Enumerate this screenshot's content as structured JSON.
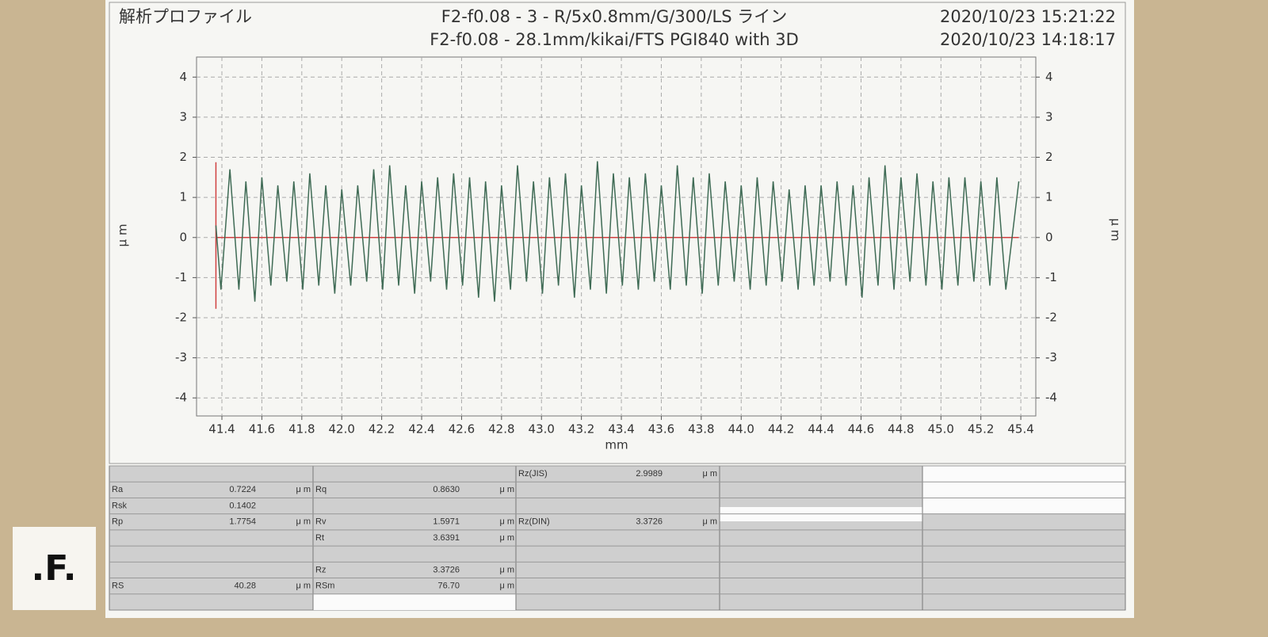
{
  "header": {
    "name": "解析プロファイル",
    "title_lines": [
      "F2-f0.08 - 3 - R/5x0.8mm/G/300/LS ライン",
      "F2-f0.08 - 28.1mm/kikai/FTS PGI840 with 3D"
    ],
    "dates": [
      "2020/10/23 15:21:22",
      "2020/10/23 14:18:17"
    ]
  },
  "chart_data": {
    "type": "line",
    "x_label": "mm",
    "y_label": "μ m",
    "y2_label": "μ m",
    "xlim": [
      41.273,
      45.475
    ],
    "ylim": [
      -4.45,
      4.5
    ],
    "y2lim": [
      -4.45,
      4.5
    ],
    "xticks": [
      41.4,
      41.6,
      41.8,
      {
        "value": 42,
        "label": "42.0"
      },
      42.2,
      42.4,
      42.6,
      42.8,
      {
        "value": 43,
        "label": "43.0"
      },
      43.2,
      43.4,
      43.6,
      43.8,
      {
        "value": 44,
        "label": "44.0"
      },
      44.2,
      44.4,
      44.6,
      44.8,
      {
        "value": 45,
        "label": "45.0"
      },
      45.2,
      45.4
    ],
    "yticks": [
      -4,
      -3,
      -2,
      -1,
      0,
      1,
      2,
      3,
      4
    ],
    "y2ticks": [
      -4,
      -3,
      -2,
      -1,
      0,
      1,
      2,
      3,
      4
    ],
    "grid": true,
    "series": [
      {
        "color": "#3f6b55",
        "x": [
          41.37,
          41.395,
          41.44,
          41.485,
          41.52,
          41.565,
          41.6,
          41.645,
          41.68,
          41.725,
          41.76,
          41.805,
          41.84,
          41.885,
          41.92,
          41.965,
          42.0,
          42.045,
          42.08,
          42.125,
          42.16,
          42.205,
          42.24,
          42.285,
          42.32,
          42.365,
          42.4,
          42.445,
          42.48,
          42.525,
          42.56,
          42.605,
          42.64,
          42.685,
          42.72,
          42.765,
          42.8,
          42.845,
          42.88,
          42.925,
          42.96,
          43.005,
          43.04,
          43.085,
          43.12,
          43.165,
          43.2,
          43.245,
          43.28,
          43.325,
          43.36,
          43.405,
          43.44,
          43.485,
          43.52,
          43.565,
          43.6,
          43.645,
          43.68,
          43.725,
          43.76,
          43.805,
          43.84,
          43.885,
          43.92,
          43.965,
          44.0,
          44.045,
          44.08,
          44.125,
          44.16,
          44.205,
          44.24,
          44.285,
          44.32,
          44.365,
          44.4,
          44.445,
          44.48,
          44.525,
          44.56,
          44.605,
          44.64,
          44.685,
          44.72,
          44.765,
          44.8,
          44.845,
          44.88,
          44.925,
          44.96,
          45.005,
          45.04,
          45.085,
          45.12,
          45.165,
          45.2,
          45.245,
          45.28,
          45.325,
          45.39
        ],
        "values": [
          0.3,
          -1.3,
          1.7,
          -1.3,
          1.4,
          -1.6,
          1.5,
          -1.2,
          1.3,
          -1.1,
          1.4,
          -1.3,
          1.6,
          -1.2,
          1.3,
          -1.4,
          1.2,
          -1.2,
          1.3,
          -1.1,
          1.7,
          -1.3,
          1.8,
          -1.2,
          1.3,
          -1.4,
          1.4,
          -1.1,
          1.5,
          -1.3,
          1.6,
          -1.2,
          1.5,
          -1.5,
          1.4,
          -1.6,
          1.3,
          -1.3,
          1.8,
          -1.1,
          1.4,
          -1.4,
          1.5,
          -1.2,
          1.6,
          -1.5,
          1.3,
          -1.3,
          1.9,
          -1.4,
          1.6,
          -1.2,
          1.5,
          -1.3,
          1.6,
          -1.1,
          1.3,
          -1.3,
          1.8,
          -1.2,
          1.5,
          -1.4,
          1.6,
          -1.2,
          1.4,
          -1.1,
          1.3,
          -1.3,
          1.5,
          -1.2,
          1.4,
          -1.1,
          1.2,
          -1.3,
          1.3,
          -1.2,
          1.3,
          -1.1,
          1.4,
          -1.2,
          1.3,
          -1.5,
          1.5,
          -1.2,
          1.8,
          -1.3,
          1.5,
          -1.1,
          1.6,
          -1.2,
          1.4,
          -1.3,
          1.5,
          -1.2,
          1.5,
          -1.1,
          1.4,
          -1.2,
          1.5,
          -1.3,
          1.4
        ]
      }
    ]
  },
  "table": {
    "rows": [
      [
        null,
        null,
        [
          "Rz(JIS)",
          "2.9989",
          "μ m"
        ],
        null,
        null
      ],
      [
        [
          "Ra",
          "0.7224",
          "μ m"
        ],
        [
          "Rq",
          "0.8630",
          "μ m"
        ],
        null,
        null,
        null
      ],
      [
        [
          "Rsk",
          "0.1402"
        ],
        null,
        null,
        null,
        null
      ],
      [
        [
          "Rp",
          "1.7754",
          "μ m"
        ],
        [
          "Rv",
          "1.5971",
          "μ m"
        ],
        [
          "Rz(DIN)",
          "3.3726",
          "μ m"
        ],
        null,
        null
      ],
      [
        null,
        [
          "Rt",
          "3.6391",
          "μ m"
        ],
        null,
        null,
        null
      ],
      [
        null,
        null,
        null,
        null,
        null
      ],
      [
        null,
        [
          "Rz",
          "3.3726",
          "μ m"
        ],
        null,
        null,
        null
      ],
      [
        [
          "RS",
          "40.28",
          "μ m"
        ],
        [
          "RSm",
          "76.70",
          "μ m"
        ],
        null,
        null,
        null
      ],
      [
        null,
        null,
        null,
        null,
        null
      ]
    ]
  },
  "logo": ".F."
}
